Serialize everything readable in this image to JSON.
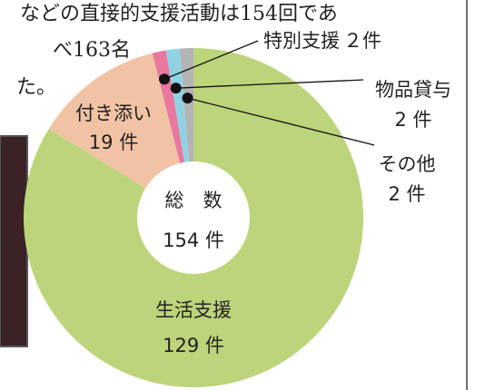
{
  "text_lines": [
    "などの直接的支援活動は154回であ",
    "べ163名",
    "た。"
  ],
  "chart_data": {
    "type": "pie",
    "categories": [
      "その他",
      "物品貸与",
      "特別支援",
      "付き添い",
      "生活支援"
    ],
    "values": [
      2,
      2,
      2,
      19,
      129
    ],
    "value_labels": [
      "2 件",
      "2 件",
      "２件",
      "19 件",
      "129 件"
    ],
    "colors": [
      "#b4b4b4",
      "#8fd3e3",
      "#e8789e",
      "#f1c3a4",
      "#bcd47a"
    ],
    "center_lines": [
      "総　数",
      "154 件"
    ]
  }
}
